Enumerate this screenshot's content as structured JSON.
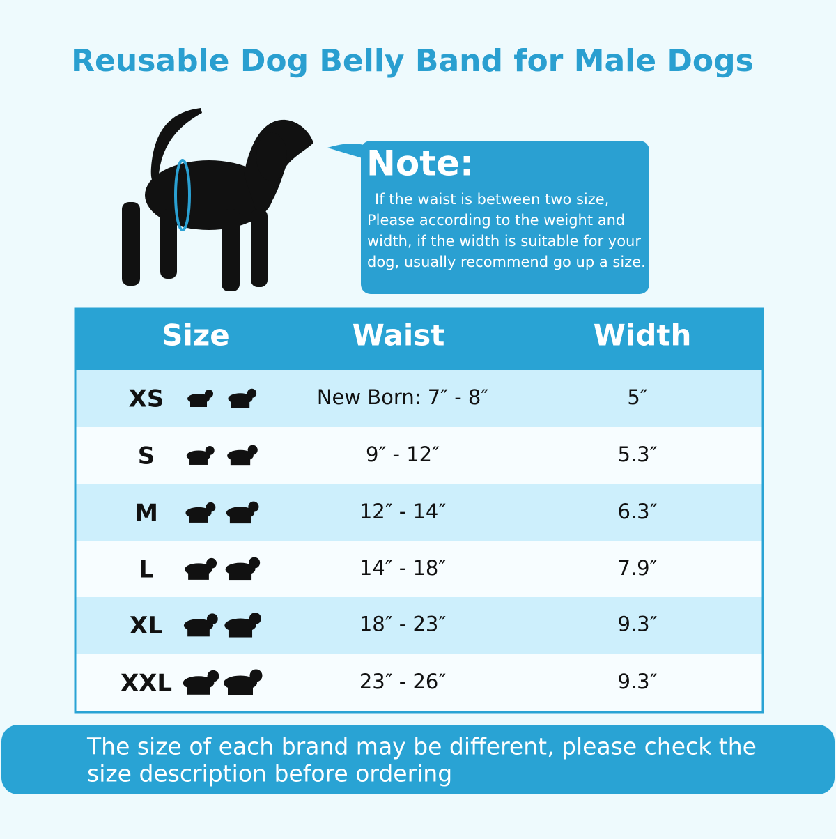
{
  "title": "Reusable Dog Belly Band for Male Dogs",
  "note": {
    "heading": "Note:",
    "lines": [
      "If the waist is between two size,",
      "Please according to the weight and",
      "width, if the width is suitable for your",
      "dog, usually recommend go up a size."
    ]
  },
  "table": {
    "header": [
      "Size",
      "Waist",
      "Width"
    ],
    "rows": [
      [
        "XS",
        "New Born: 7″ - 8″",
        "5″"
      ],
      [
        "S",
        "9″ - 12″",
        "5.3″"
      ],
      [
        "M",
        "12″ - 14″",
        "6.3″"
      ],
      [
        "L",
        "14″ - 18″",
        "7.9″"
      ],
      [
        "XL",
        "18″ - 23″",
        "9.3″"
      ],
      [
        "XXL",
        "23″ - 26″",
        "9.3″"
      ]
    ]
  },
  "footer": {
    "lines": [
      "The size of each brand may be different, please check the",
      "size description before ordering"
    ]
  }
}
